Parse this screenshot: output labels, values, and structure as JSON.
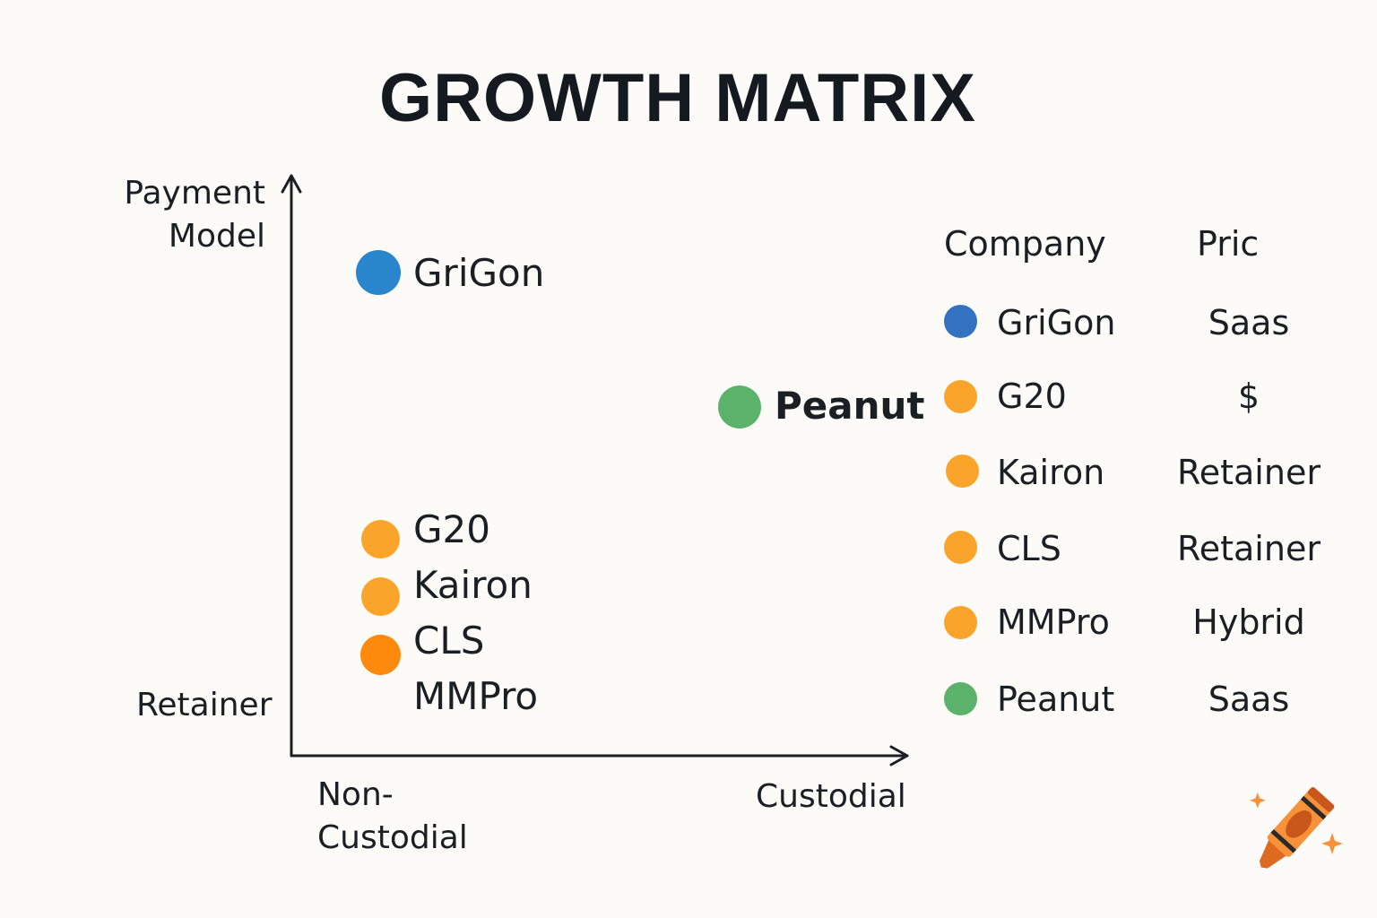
{
  "title": "GROWTH MATRIX",
  "axes": {
    "y_label_line1": "Payment",
    "y_label_line2": "Model",
    "y_low": "Retainer",
    "x_low_line1": "Non-",
    "x_low_line2": "Custodial",
    "x_high": "Custodial"
  },
  "points": [
    {
      "label": "GriGon",
      "color": "#2a86cc"
    },
    {
      "label": "Peanut",
      "color": "#5bb26a"
    },
    {
      "label": "G20",
      "color": "#fba42c"
    },
    {
      "label": "Kairon",
      "color": "#fba42c"
    },
    {
      "label": "CLS",
      "color": "#fd8a0c"
    },
    {
      "label": "MMPro"
    }
  ],
  "table": {
    "headers": [
      "Company",
      "Pric"
    ],
    "rows": [
      {
        "company": "GriGon",
        "pricing": "Saas",
        "color": "#3272c0"
      },
      {
        "company": "G20",
        "pricing": "$",
        "color": "#fba42c"
      },
      {
        "company": "Kairon",
        "pricing": "Retainer",
        "color": "#fba42c"
      },
      {
        "company": "CLS",
        "pricing": "Retainer",
        "color": "#fba42c"
      },
      {
        "company": "MMPro",
        "pricing": "Hybrid",
        "color": "#fba42c"
      },
      {
        "company": "Peanut",
        "pricing": "Saas",
        "color": "#5bb26a"
      }
    ]
  },
  "icons": {
    "logo": "crayon-icon"
  }
}
